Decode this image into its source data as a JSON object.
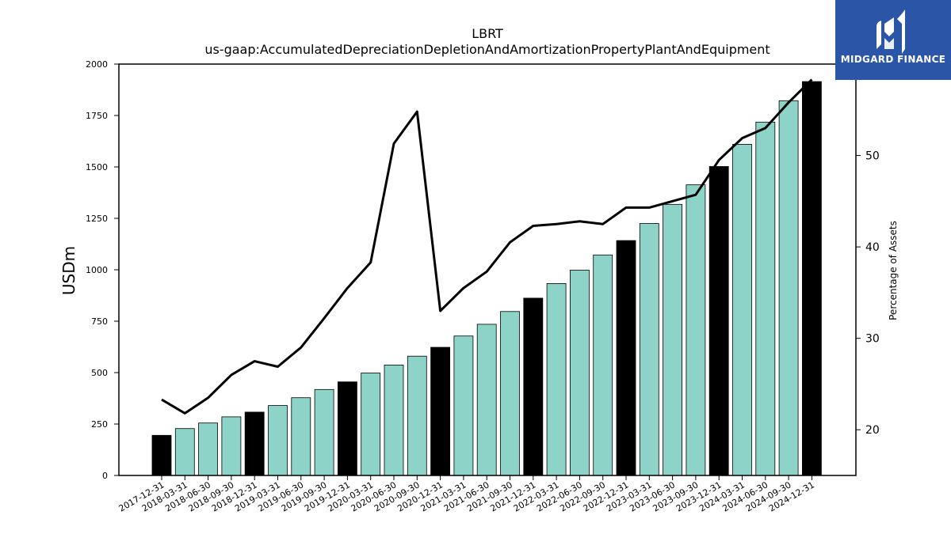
{
  "chart_data": {
    "type": "bar",
    "title": "LBRT",
    "subtitle": "us-gaap:AccumulatedDepreciationDepletionAndAmortizationPropertyPlantAndEquipment",
    "ylabel": "USDm",
    "y2label": "Percentage of Assets",
    "ylim": [
      0,
      2000
    ],
    "y2lim": [
      15,
      60
    ],
    "yticks": [
      0,
      250,
      500,
      750,
      1000,
      1250,
      1500,
      1750,
      2000
    ],
    "y2ticks": [
      20,
      30,
      40,
      50
    ],
    "categories": [
      "2017-12-31",
      "2018-03-31",
      "2018-06-30",
      "2018-09-30",
      "2018-12-31",
      "2019-03-31",
      "2019-06-30",
      "2019-09-30",
      "2019-12-31",
      "2020-03-31",
      "2020-06-30",
      "2020-09-30",
      "2020-12-31",
      "2021-03-31",
      "2021-06-30",
      "2021-09-30",
      "2021-12-31",
      "2022-03-31",
      "2022-06-30",
      "2022-09-30",
      "2022-12-31",
      "2023-03-31",
      "2023-06-30",
      "2023-09-30",
      "2023-12-31",
      "2024-03-31",
      "2024-06-30",
      "2024-09-30",
      "2024-12-31"
    ],
    "series": [
      {
        "kind": "bar",
        "values": [
          195,
          228,
          255,
          285,
          308,
          340,
          378,
          418,
          455,
          498,
          537,
          580,
          623,
          678,
          735,
          797,
          862,
          933,
          998,
          1072,
          1142,
          1225,
          1318,
          1413,
          1502,
          1610,
          1718,
          1822,
          1915
        ],
        "colors": [
          "#000000",
          "#8dd3c7",
          "#8dd3c7",
          "#8dd3c7",
          "#000000",
          "#8dd3c7",
          "#8dd3c7",
          "#8dd3c7",
          "#000000",
          "#8dd3c7",
          "#8dd3c7",
          "#8dd3c7",
          "#000000",
          "#8dd3c7",
          "#8dd3c7",
          "#8dd3c7",
          "#000000",
          "#8dd3c7",
          "#8dd3c7",
          "#8dd3c7",
          "#000000",
          "#8dd3c7",
          "#8dd3c7",
          "#8dd3c7",
          "#000000",
          "#8dd3c7",
          "#8dd3c7",
          "#8dd3c7",
          "#000000"
        ]
      },
      {
        "kind": "line",
        "axis": "right",
        "color": "#000000",
        "values": [
          23.3,
          21.8,
          23.5,
          26.0,
          27.5,
          26.9,
          29.0,
          32.2,
          35.5,
          38.3,
          51.3,
          54.8,
          33.0,
          35.5,
          37.3,
          40.5,
          42.3,
          42.5,
          42.8,
          42.5,
          44.3,
          44.3,
          45.0,
          45.7,
          49.5,
          51.9,
          53.0,
          55.8,
          58.3
        ]
      }
    ],
    "grid": false,
    "legend": "none"
  },
  "logo": {
    "text": "MIDGARD FINANCE",
    "color": "#2b56a8"
  }
}
